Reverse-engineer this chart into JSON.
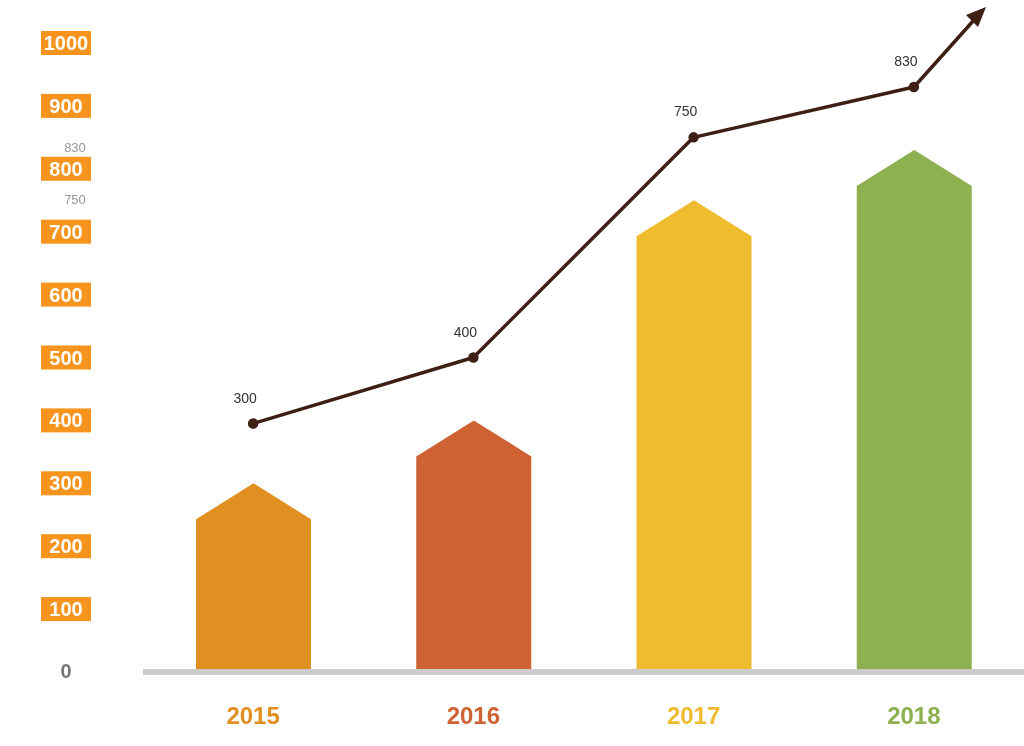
{
  "chart_data": {
    "type": "bar",
    "categories": [
      "2015",
      "2016",
      "2017",
      "2018"
    ],
    "series": [
      {
        "colors": [
          "#e28f22",
          "#cf6232",
          "#efbc30",
          "#8db050"
        ],
        "values": [
          300,
          400,
          750,
          830
        ]
      },
      {
        "type": "line",
        "color": "#3d1f14",
        "values": [
          395,
          500,
          850,
          930
        ]
      }
    ],
    "ylim": [
      0,
      1000
    ],
    "yticks": [
      0,
      100,
      200,
      300,
      400,
      500,
      600,
      700,
      800,
      900,
      1000
    ],
    "marker": "circle",
    "line_style": "solid",
    "annotations": [
      "830",
      "750",
      {
        "text": "300",
        "x": "2015",
        "y": 395
      },
      {
        "text": "400",
        "x": "2016",
        "y": 500
      },
      {
        "text": "750",
        "x": "2017",
        "y": 850
      },
      {
        "text": "830",
        "x": "2018",
        "y": 930
      }
    ]
  }
}
